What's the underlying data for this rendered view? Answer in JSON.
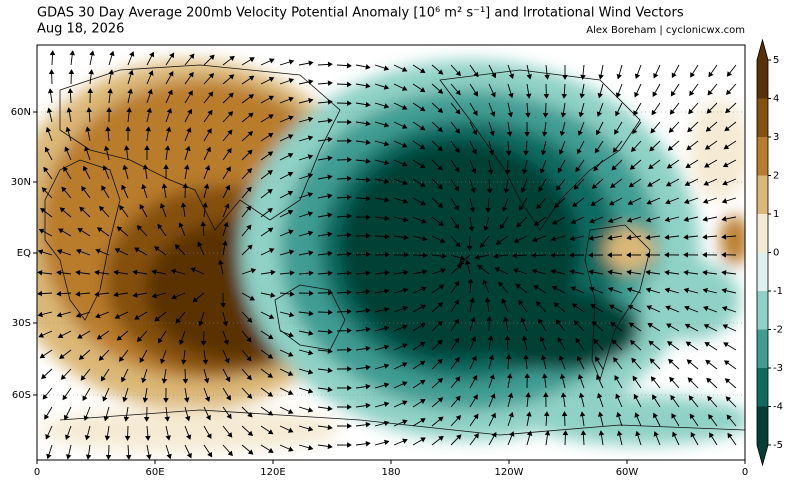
{
  "header": {
    "title": "GDAS 30 Day Average 200mb Velocity Potential Anomaly [10⁶ m² s⁻¹] and Irrotational Wind Vectors",
    "date": "Aug 18, 2026",
    "credit": "Alex Boreham | cyclonicwx.com"
  },
  "map": {
    "lon_labels": [
      "0",
      "60E",
      "120E",
      "180",
      "120W",
      "60W",
      "0"
    ],
    "lat_labels": [
      "60N",
      "30N",
      "EQ",
      "30S",
      "60S"
    ]
  },
  "colorbar": {
    "ticks": [
      5,
      4,
      3,
      2,
      1,
      0,
      -1,
      -2,
      -3,
      -4,
      -5
    ],
    "colors": [
      "#5a3106",
      "#84500f",
      "#b97b2c",
      "#dbb877",
      "#f5ead3",
      "#ddf1ee",
      "#8fd1c6",
      "#3f9d93",
      "#0d6b60",
      "#043f35"
    ]
  }
}
